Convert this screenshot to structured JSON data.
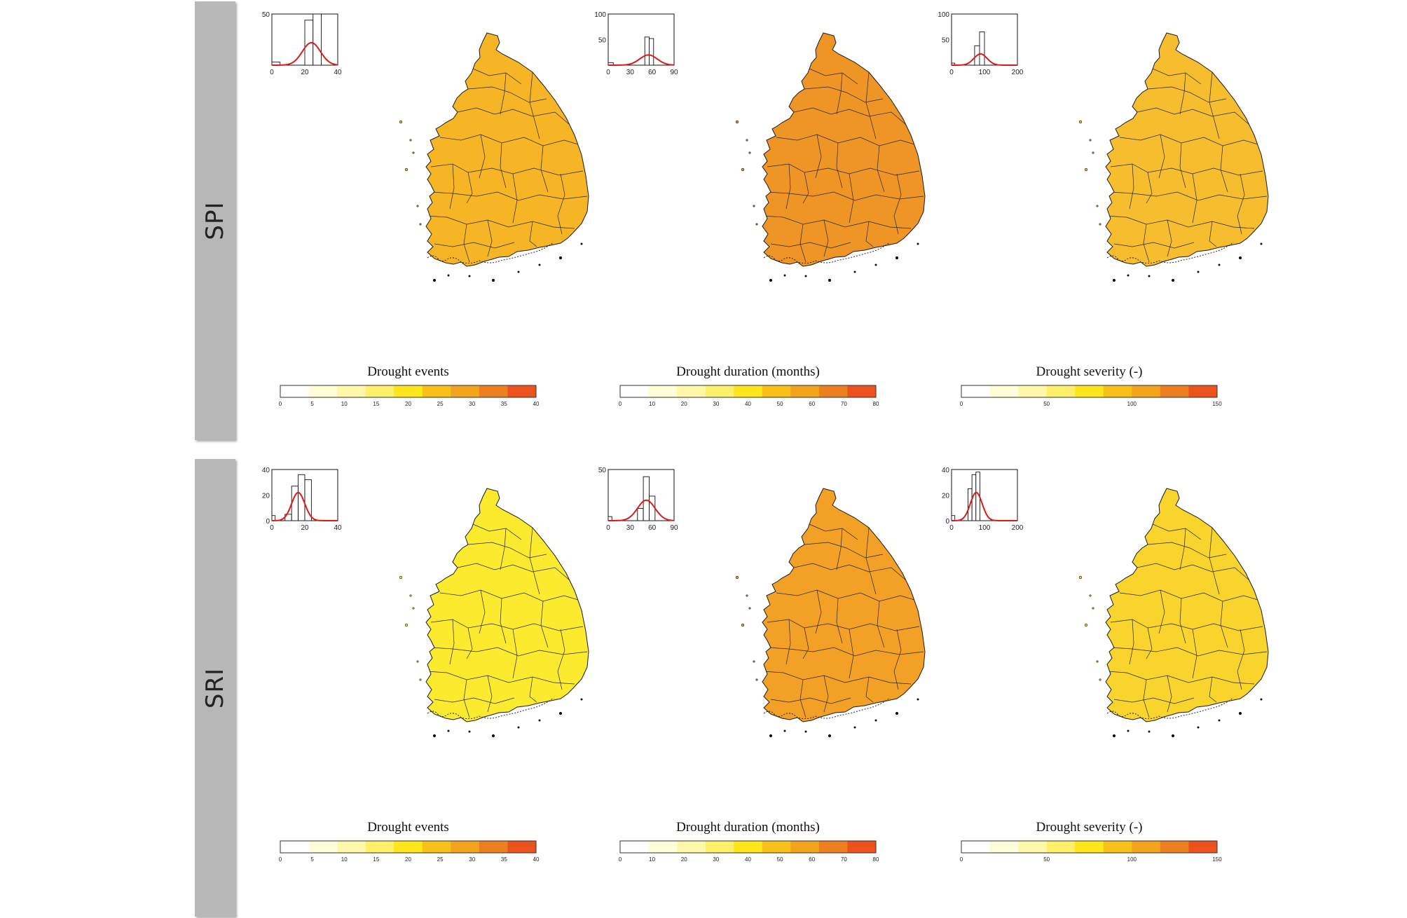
{
  "rows": [
    {
      "label": "SPI",
      "panels": [
        {
          "title": "Drought events",
          "cb_max": 40,
          "cb_ticks": [
            "0",
            "5",
            "10",
            "15",
            "20",
            "25",
            "30",
            "35",
            "40"
          ],
          "fill": "#f6b525",
          "hist_x_ticks": [
            "0",
            "20",
            "40"
          ],
          "hist_y_ticks": [
            "50"
          ],
          "hist_ymax": 50,
          "hist_xmax": 40,
          "hist_bars": [
            [
              0,
              5,
              3
            ],
            [
              20,
              25,
              44
            ],
            [
              25,
              30,
              50
            ]
          ],
          "hist_mean": 24,
          "hist_sd": 5.5,
          "hist_peak": 22
        },
        {
          "title": "Drought duration (months)",
          "cb_max": 80,
          "cb_ticks": [
            "0",
            "10",
            "20",
            "30",
            "40",
            "50",
            "60",
            "70",
            "80"
          ],
          "fill": "#ee9526",
          "hist_x_ticks": [
            "0",
            "30",
            "60",
            "90"
          ],
          "hist_y_ticks": [
            "100",
            "50"
          ],
          "hist_ymax": 100,
          "hist_xmax": 90,
          "hist_bars": [
            [
              0,
              7,
              5
            ],
            [
              50,
              56,
              55
            ],
            [
              56,
              62,
              52
            ]
          ],
          "hist_mean": 55,
          "hist_sd": 12,
          "hist_peak": 20
        },
        {
          "title": "Drought severity (-)",
          "cb_max": 150,
          "cb_ticks": [
            "0",
            "50",
            "100",
            "150"
          ],
          "fill": "#f6be2e",
          "hist_x_ticks": [
            "0",
            "100",
            "200"
          ],
          "hist_y_ticks": [
            "100",
            "50"
          ],
          "hist_ymax": 100,
          "hist_xmax": 200,
          "hist_bars": [
            [
              0,
              10,
              4
            ],
            [
              70,
              85,
              38
            ],
            [
              85,
              100,
              65
            ]
          ],
          "hist_mean": 88,
          "hist_sd": 20,
          "hist_peak": 22
        }
      ]
    },
    {
      "label": "SRI",
      "panels": [
        {
          "title": "Drought events",
          "cb_max": 40,
          "cb_ticks": [
            "0",
            "5",
            "10",
            "15",
            "20",
            "25",
            "30",
            "35",
            "40"
          ],
          "fill": "#fcea2e",
          "hist_x_ticks": [
            "0",
            "20",
            "40"
          ],
          "hist_y_ticks": [
            "40",
            "20",
            "0"
          ],
          "hist_ymax": 40,
          "hist_xmax": 40,
          "hist_bars": [
            [
              0,
              2,
              4
            ],
            [
              8,
              12,
              5
            ],
            [
              12,
              16,
              27
            ],
            [
              16,
              20,
              36
            ],
            [
              20,
              24,
              32
            ]
          ],
          "hist_mean": 16,
          "hist_sd": 4,
          "hist_peak": 22
        },
        {
          "title": "Drought duration (months)",
          "cb_max": 80,
          "cb_ticks": [
            "0",
            "10",
            "20",
            "30",
            "40",
            "50",
            "60",
            "70",
            "80"
          ],
          "fill": "#f2a126",
          "hist_x_ticks": [
            "0",
            "30",
            "60",
            "90"
          ],
          "hist_y_ticks": [
            "50"
          ],
          "hist_ymax": 50,
          "hist_xmax": 90,
          "hist_bars": [
            [
              0,
              5,
              4
            ],
            [
              40,
              48,
              12
            ],
            [
              48,
              56,
              43
            ],
            [
              56,
              64,
              24
            ]
          ],
          "hist_mean": 52,
          "hist_sd": 12,
          "hist_peak": 20
        },
        {
          "title": "Drought severity (-)",
          "cb_max": 150,
          "cb_ticks": [
            "0",
            "50",
            "100",
            "150"
          ],
          "fill": "#f9d42c",
          "hist_x_ticks": [
            "0",
            "100",
            "200"
          ],
          "hist_y_ticks": [
            "40",
            "20",
            "0"
          ],
          "hist_ymax": 40,
          "hist_xmax": 200,
          "hist_bars": [
            [
              0,
              10,
              4
            ],
            [
              50,
              62,
              25
            ],
            [
              62,
              74,
              36
            ],
            [
              74,
              86,
              38
            ]
          ],
          "hist_mean": 75,
          "hist_sd": 18,
          "hist_peak": 22
        }
      ]
    }
  ],
  "colorbar_colors": [
    "#ffffff",
    "#fffcd8",
    "#fff8aa",
    "#fff06a",
    "#fee51c",
    "#f8c018",
    "#f3a31c",
    "#ee7f1f",
    "#ec531c"
  ],
  "hist_curve_color": "#dd1a1a"
}
